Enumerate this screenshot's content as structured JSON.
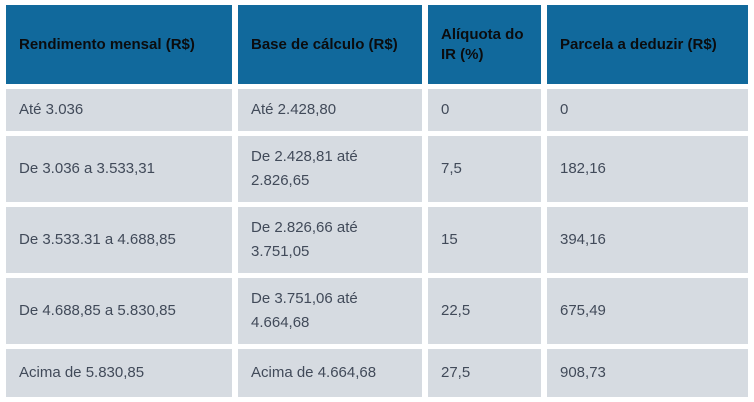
{
  "chart_data": {
    "type": "table",
    "columns": [
      "Rendimento mensal (R$)",
      "Base de cálculo (R$)",
      "Alíquota do IR (%)",
      "Parcela a deduzir (R$)"
    ],
    "rows": [
      [
        "Até 3.036",
        "Até 2.428,80",
        "0",
        "0"
      ],
      [
        "De 3.036 a 3.533,31",
        "De 2.428,81 até 2.826,65",
        "7,5",
        "182,16"
      ],
      [
        "De 3.533.31 a 4.688,85",
        "De 2.826,66 até 3.751,05",
        "15",
        "394,16"
      ],
      [
        "De 4.688,85 a 5.830,85",
        "De 3.751,06 até 4.664,68",
        "22,5",
        "675,49"
      ],
      [
        "Acima de 5.830,85",
        "Acima de 4.664,68",
        "27,5",
        "908,73"
      ]
    ]
  },
  "colors": {
    "header_bg": "#11699c",
    "header_text": "#0b0c0e",
    "cell_bg": "#d6dbe1",
    "cell_text": "#414a59",
    "gap_background": "#ffffff"
  }
}
